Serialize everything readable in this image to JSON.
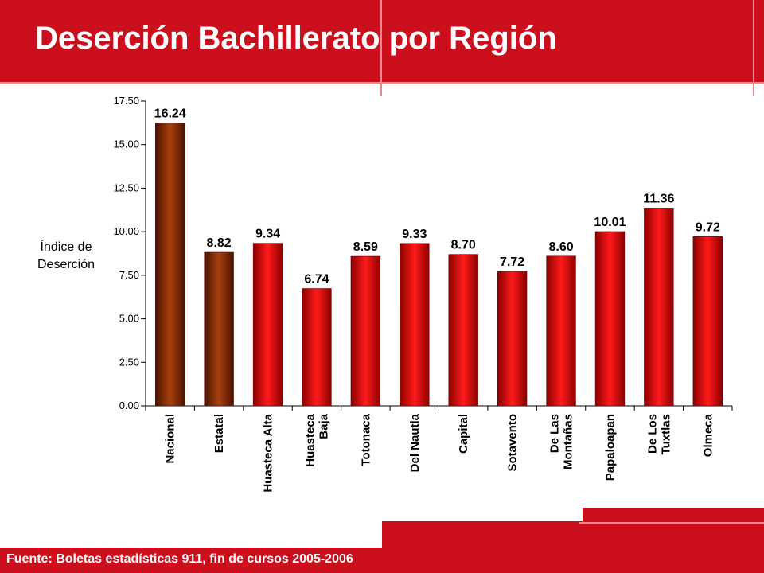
{
  "title": "Deserción Bachillerato por Región",
  "footer": "Fuente: Boletas estadísticas 911, fin de cursos 2005-2006",
  "colors": {
    "accent": "#cc0f1c",
    "bar_red": "#ee0000",
    "bar_brown": "#8a2a06"
  },
  "chart_data": {
    "type": "bar",
    "title": "",
    "ylabel": "Índice de Deserción",
    "ylabel_lines": [
      "Índice de",
      "Deserción"
    ],
    "ylim": [
      0,
      17.5
    ],
    "yticks": [
      "0.00",
      "2.50",
      "5.00",
      "7.50",
      "10.00",
      "12.50",
      "15.00",
      "17.50"
    ],
    "categories": [
      [
        "Nacional"
      ],
      [
        "Estatal"
      ],
      [
        "Huasteca Alta"
      ],
      [
        "Huasteca",
        "Baja"
      ],
      [
        "Totonaca"
      ],
      [
        "Del Nautla"
      ],
      [
        "Capital"
      ],
      [
        "Sotavento"
      ],
      [
        "De Las",
        "Montañas"
      ],
      [
        "Papaloapan"
      ],
      [
        "De Los",
        "Tuxtlas"
      ],
      [
        "Olmeca"
      ]
    ],
    "values": [
      16.24,
      8.82,
      9.34,
      6.74,
      8.59,
      9.33,
      8.7,
      7.72,
      8.6,
      10.01,
      11.36,
      9.72
    ],
    "value_labels": [
      "16.24",
      "8.82",
      "9.34",
      "6.74",
      "8.59",
      "9.33",
      "8.70",
      "7.72",
      "8.60",
      "10.01",
      "11.36",
      "9.72"
    ],
    "bar_colors": [
      "brown",
      "brown",
      "red",
      "red",
      "red",
      "red",
      "red",
      "red",
      "red",
      "red",
      "red",
      "red"
    ],
    "grid": false,
    "legend": "none"
  }
}
